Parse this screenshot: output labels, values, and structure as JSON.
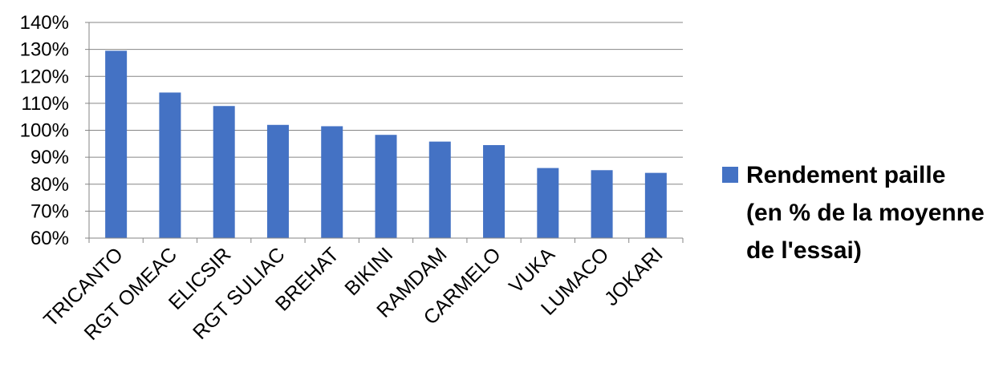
{
  "chart_data": {
    "type": "bar",
    "categories": [
      "TRICANTO",
      "RGT OMEAC",
      "ELICSIR",
      "RGT SULIAC",
      "BREHAT",
      "BIKINI",
      "RAMDAM",
      "CARMELO",
      "VUKA",
      "LUMACO",
      "JOKARI"
    ],
    "series": [
      {
        "name": "Rendement paille (en % de la moyenne de l'essai)",
        "name_lines": [
          "Rendement paille",
          "(en % de la moyenne",
          "de l'essai)"
        ],
        "values": [
          129.5,
          114,
          109,
          102,
          101.5,
          98.3,
          95.8,
          94.5,
          86,
          85.2,
          84.2
        ],
        "color": "#4472C4"
      }
    ],
    "title": "",
    "xlabel": "",
    "ylabel": "",
    "ylim": [
      60,
      140
    ],
    "yticks": [
      "60%",
      "70%",
      "80%",
      "90%",
      "100%",
      "110%",
      "120%",
      "130%",
      "140%"
    ],
    "grid": true,
    "legend": "right",
    "gridline_color": "#868686"
  }
}
